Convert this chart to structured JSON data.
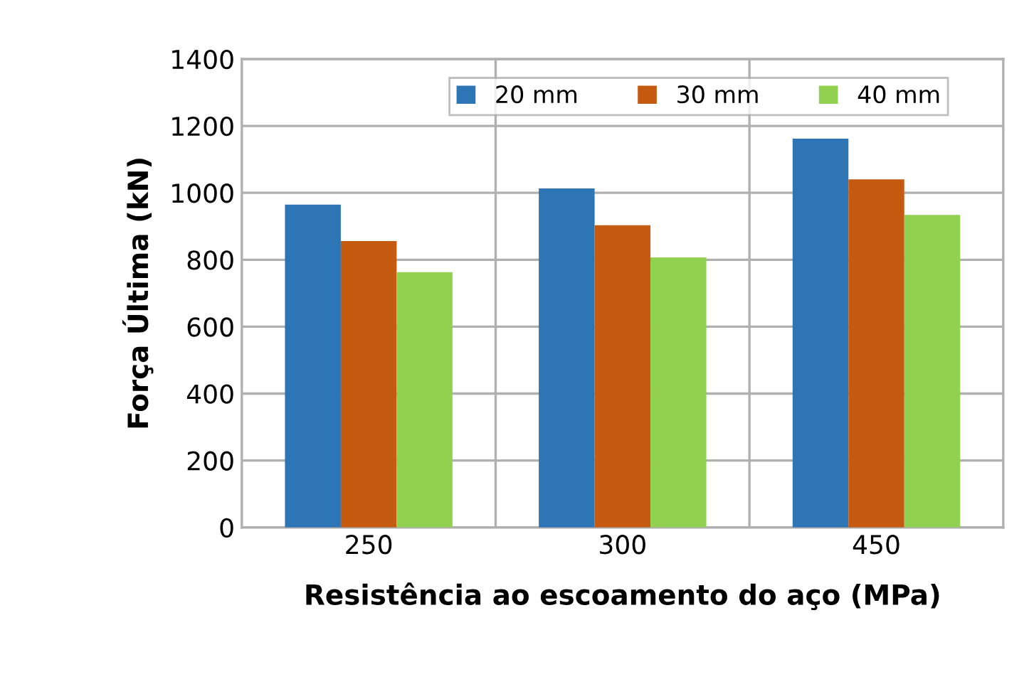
{
  "chart_data": {
    "type": "bar",
    "xlabel": "Resistência ao escoamento do aço (MPa)",
    "ylabel": "Força Última (kN)",
    "categories": [
      "250",
      "300",
      "450"
    ],
    "series": [
      {
        "name": "20 mm",
        "color": "#2e75b6",
        "values": [
          965,
          1013,
          1162
        ]
      },
      {
        "name": "30 mm",
        "color": "#c55a11",
        "values": [
          856,
          903,
          1040
        ]
      },
      {
        "name": "40 mm",
        "color": "#92d050",
        "values": [
          763,
          807,
          934
        ]
      }
    ],
    "ylim": [
      0,
      1400
    ],
    "yticks": [
      0,
      200,
      400,
      600,
      800,
      1000,
      1200,
      1400
    ],
    "grid": true,
    "legend": "top"
  }
}
